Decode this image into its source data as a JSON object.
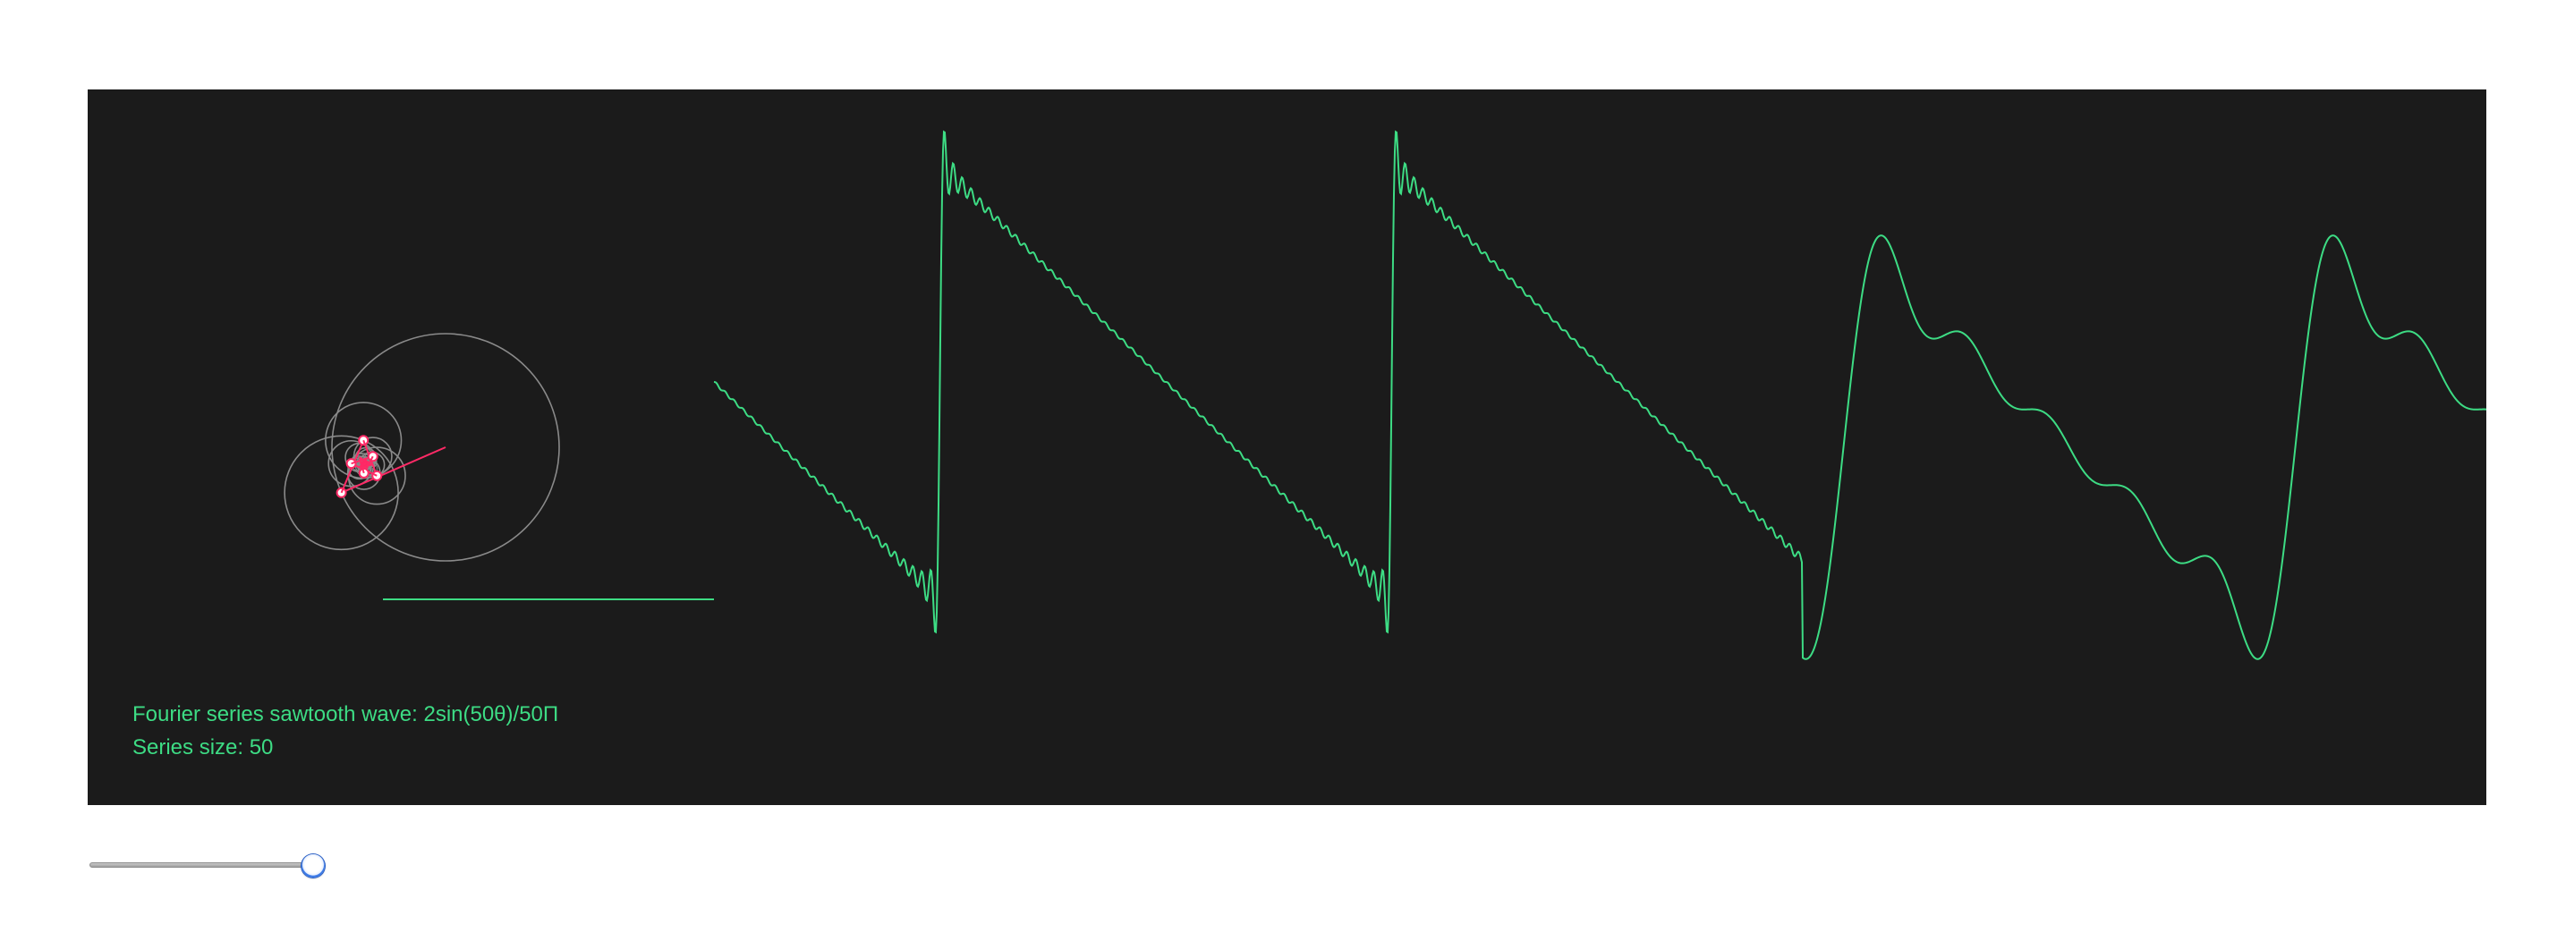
{
  "info": {
    "formula_text": "Fourier series sawtooth wave: 2sin(50θ)/50Π",
    "series_size_text": "Series size: 50"
  },
  "series_size": 50,
  "slider": {
    "min": 1,
    "max": 50,
    "value": 50
  },
  "colors": {
    "canvas_background": "#1b1b1b",
    "wave": "#3ddc84",
    "epicycle_arm": "#ff2a66",
    "circle": "#8a8a8a",
    "text": "#3ddc84",
    "slider_accent": "#2f6ddb"
  }
}
